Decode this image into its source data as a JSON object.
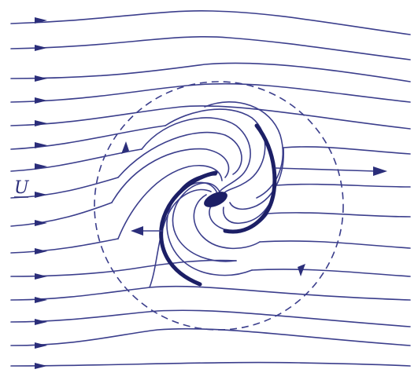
{
  "diagram": {
    "stroke_color": "#3b3e8c",
    "accent_color": "#1c1f66",
    "free_stream_label": "U"
  }
}
